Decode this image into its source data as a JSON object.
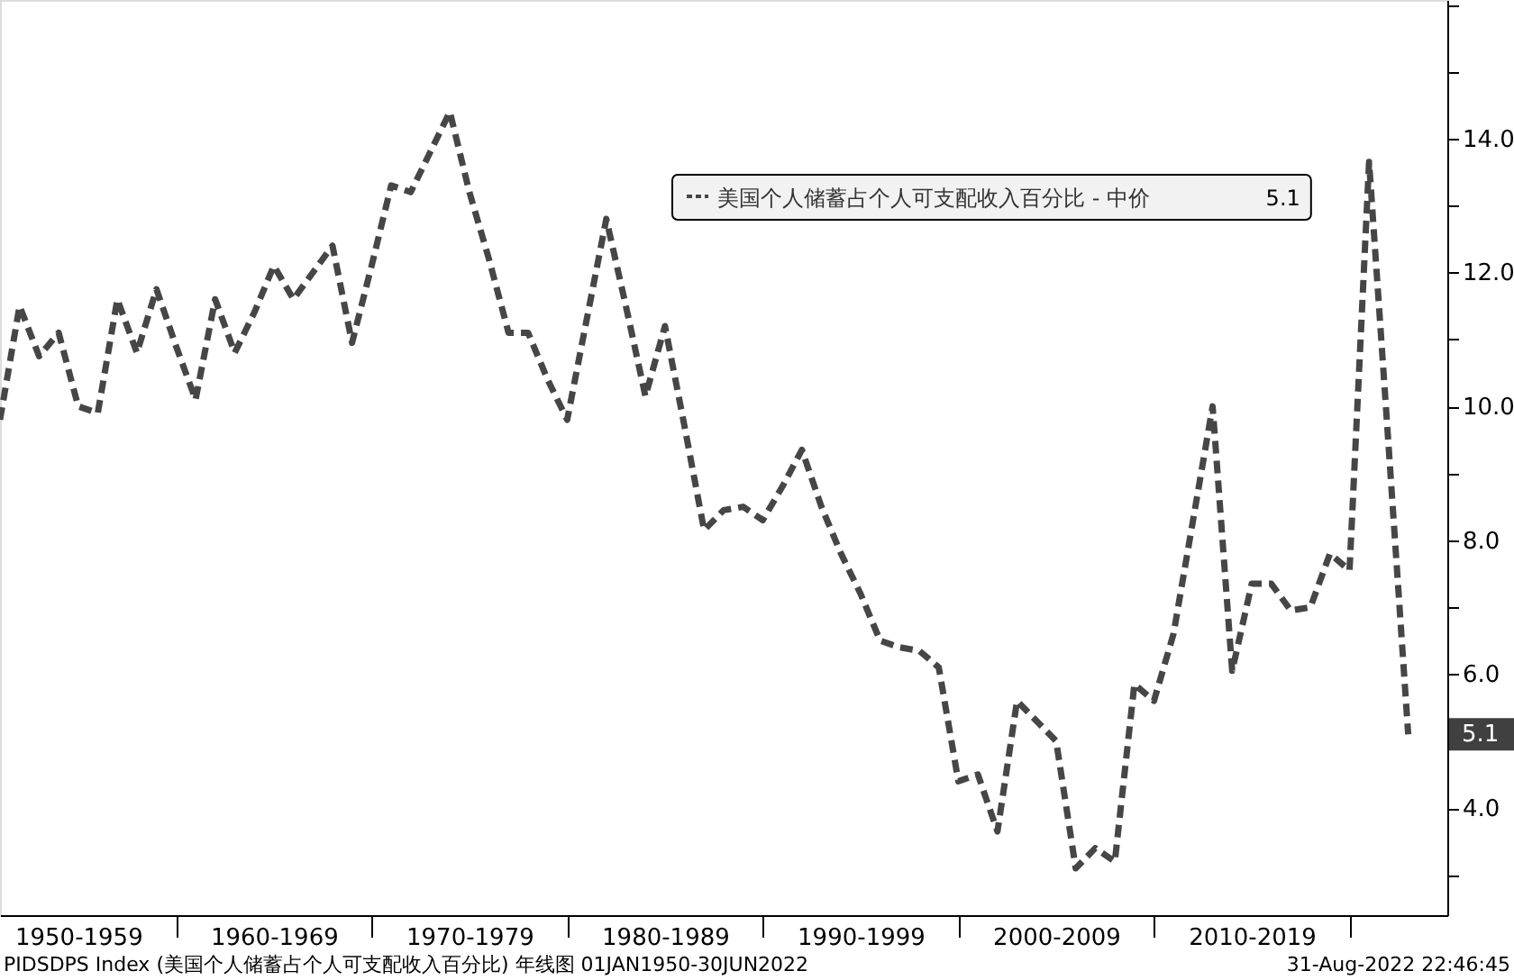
{
  "chart_data": {
    "type": "line",
    "categories": [
      null,
      null,
      null,
      null,
      "1950-1959",
      null,
      null,
      null,
      null,
      null,
      null,
      null,
      null,
      null,
      "1960-1969",
      null,
      null,
      null,
      null,
      null,
      null,
      null,
      null,
      null,
      "1970-1979",
      null,
      null,
      null,
      null,
      null,
      null,
      null,
      null,
      null,
      "1980-1989",
      null,
      null,
      null,
      null,
      null,
      null,
      null,
      null,
      null,
      "1990-1999",
      null,
      null,
      null,
      null,
      null,
      null,
      null,
      null,
      null,
      "2000-2009",
      null,
      null,
      null,
      null,
      null,
      null,
      null,
      null,
      null,
      "2010-2019",
      null,
      null,
      null,
      null,
      null,
      null,
      null,
      null
    ],
    "series": [
      {
        "name": "美国个人储蓄占个人可支配收入百分比 - 中价",
        "color": "#464646",
        "values": [
          9.8,
          11.5,
          10.75,
          11.1,
          10.0,
          9.9,
          11.6,
          10.8,
          11.75,
          10.9,
          10.1,
          11.6,
          10.8,
          11.4,
          12.1,
          11.6,
          12.0,
          12.4,
          10.95,
          12.1,
          13.3,
          13.2,
          13.8,
          14.4,
          13.2,
          12.2,
          11.1,
          11.1,
          10.4,
          9.8,
          11.3,
          12.8,
          11.5,
          10.15,
          11.2,
          9.7,
          8.15,
          8.45,
          8.5,
          8.3,
          8.8,
          9.35,
          8.5,
          7.8,
          7.2,
          6.5,
          6.4,
          6.35,
          6.1,
          4.4,
          4.5,
          3.65,
          5.6,
          5.3,
          5.0,
          3.1,
          3.4,
          3.2,
          5.85,
          5.6,
          6.6,
          8.3,
          10.0,
          6.05,
          7.35,
          7.35,
          6.95,
          7.0,
          7.8,
          7.55,
          13.65,
          9.4,
          5.1
        ]
      }
    ],
    "line_style": "dashed",
    "marker": "none",
    "legend": "top",
    "grid": false,
    "ylim": [
      2.4,
      16.07
    ],
    "yticks": [
      {
        "value": 3,
        "label": null
      },
      {
        "value": 4,
        "label": "4.0"
      },
      {
        "value": 5,
        "label": null
      },
      {
        "value": 6,
        "label": "6.0"
      },
      {
        "value": 7,
        "label": null
      },
      {
        "value": 8,
        "label": "8.0"
      },
      {
        "value": 9,
        "label": null
      },
      {
        "value": 10,
        "label": "10.0"
      },
      {
        "value": 11,
        "label": null
      },
      {
        "value": 12,
        "label": "12.0"
      },
      {
        "value": 13,
        "label": null
      },
      {
        "value": 14,
        "label": "14.0"
      },
      {
        "value": 15,
        "label": null
      },
      {
        "value": 16,
        "label": null
      }
    ],
    "annotations": [
      "5.1",
      "PIDSDPS Index (美国个人储蓄占个人可支配收入百分比)  年线图 01JAN1950-30JUN2022",
      "31-Aug-2022 22:46:45"
    ]
  }
}
